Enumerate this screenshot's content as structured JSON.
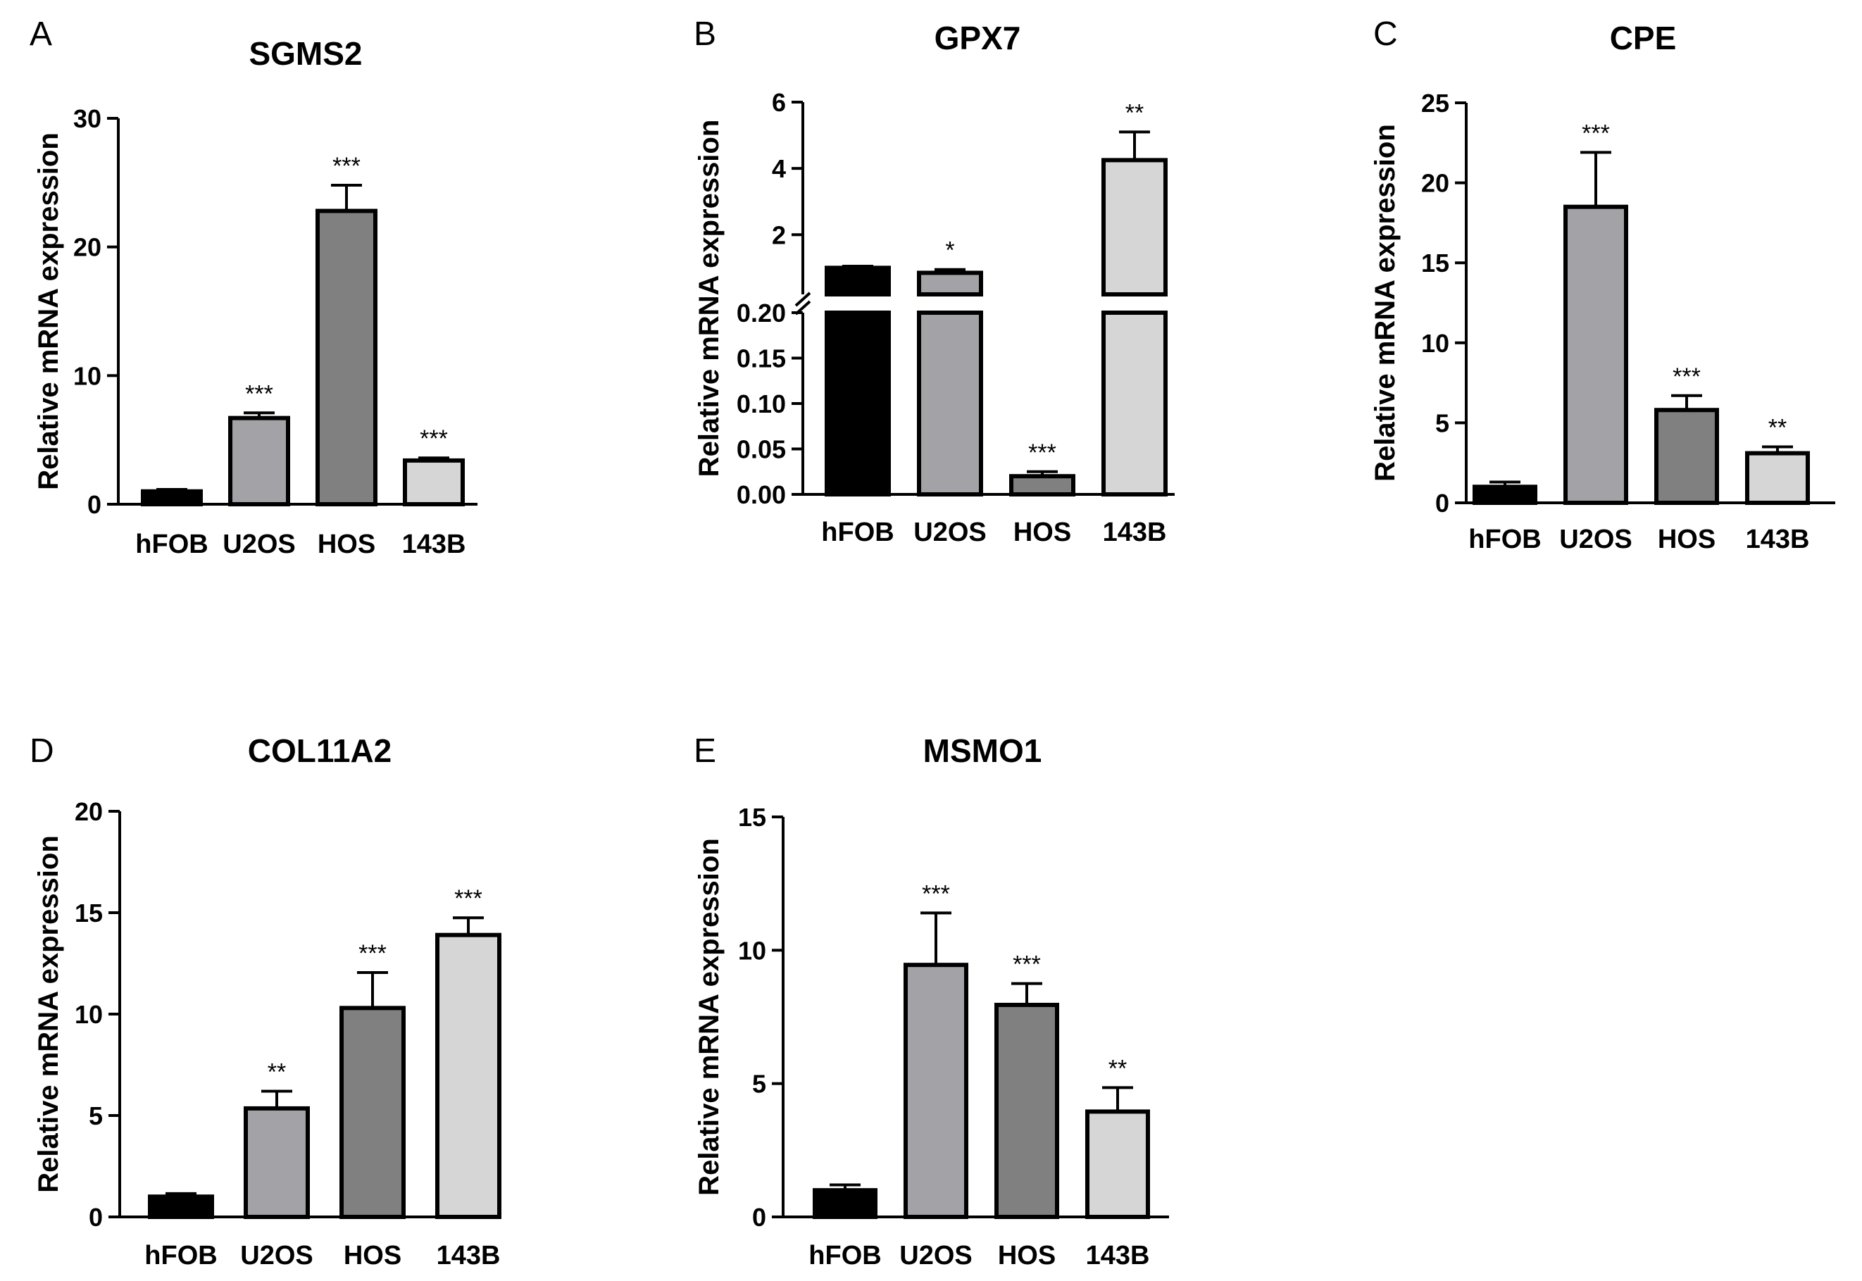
{
  "figure": {
    "categories": [
      "hFOB",
      "U2OS",
      "HOS",
      "143B"
    ],
    "bar_colors": [
      "#000000",
      "#a3a3a7",
      "#808080",
      "#d6d6d6"
    ]
  },
  "chart_data": [
    {
      "panel_label": "A",
      "type": "bar",
      "title": "SGMS2",
      "ylabel": "Relative mRNA expression",
      "xlabel": "",
      "categories": [
        "hFOB",
        "U2OS",
        "HOS",
        "143B"
      ],
      "values": [
        1.0,
        6.7,
        22.8,
        3.4
      ],
      "errors": [
        0.15,
        0.4,
        2.0,
        0.2
      ],
      "significance": [
        "",
        "***",
        "***",
        "***"
      ],
      "ylim": [
        0,
        30
      ],
      "yticks": [
        0,
        10,
        20,
        30
      ]
    },
    {
      "panel_label": "B",
      "type": "bar",
      "title": "GPX7",
      "ylabel": "Relative mRNA expression",
      "xlabel": "",
      "broken_axis": true,
      "categories": [
        "hFOB",
        "U2OS",
        "HOS",
        "143B"
      ],
      "values": [
        1.0,
        0.85,
        0.02,
        4.25
      ],
      "errors": [
        0.05,
        0.1,
        0.005,
        0.85
      ],
      "significance": [
        "",
        "*",
        "***",
        "**"
      ],
      "lower_range": [
        0,
        0.2
      ],
      "upper_range": [
        0.2,
        6
      ],
      "yticks_lower": [
        "0.00",
        "0.05",
        "0.10",
        "0.15",
        "0.20"
      ],
      "yticks_upper": [
        "2",
        "4",
        "6"
      ]
    },
    {
      "panel_label": "C",
      "type": "bar",
      "title": "CPE",
      "ylabel": "Relative mRNA expression",
      "xlabel": "",
      "categories": [
        "hFOB",
        "U2OS",
        "HOS",
        "143B"
      ],
      "values": [
        1.0,
        18.5,
        5.8,
        3.1
      ],
      "errors": [
        0.3,
        3.4,
        0.9,
        0.4
      ],
      "significance": [
        "",
        "***",
        "***",
        "**"
      ],
      "ylim": [
        0,
        25
      ],
      "yticks": [
        0,
        5,
        10,
        15,
        20,
        25
      ]
    },
    {
      "panel_label": "D",
      "type": "bar",
      "title": "COL11A2",
      "ylabel": "Relative mRNA expression",
      "xlabel": "",
      "categories": [
        "hFOB",
        "U2OS",
        "HOS",
        "143B"
      ],
      "values": [
        1.0,
        5.35,
        10.3,
        13.9
      ],
      "errors": [
        0.15,
        0.85,
        1.75,
        0.85
      ],
      "significance": [
        "",
        "**",
        "***",
        "***"
      ],
      "ylim": [
        0,
        20
      ],
      "yticks": [
        0,
        5,
        10,
        15,
        20
      ]
    },
    {
      "panel_label": "E",
      "type": "bar",
      "title": "MSMO1",
      "ylabel": "Relative mRNA expression",
      "xlabel": "",
      "categories": [
        "hFOB",
        "U2OS",
        "HOS",
        "143B"
      ],
      "values": [
        1.0,
        9.45,
        7.95,
        3.95
      ],
      "errors": [
        0.2,
        1.95,
        0.8,
        0.9
      ],
      "significance": [
        "",
        "***",
        "***",
        "**"
      ],
      "ylim": [
        0,
        15
      ],
      "yticks": [
        0,
        5,
        10,
        15
      ]
    }
  ]
}
